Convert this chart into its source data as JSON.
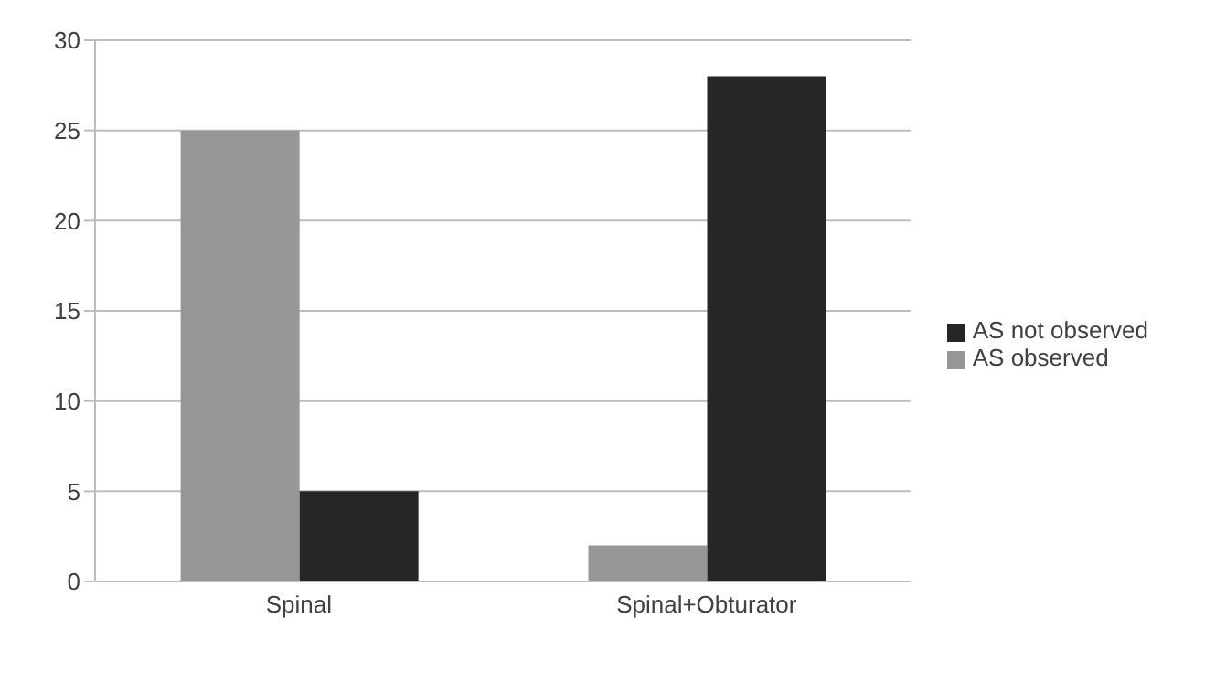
{
  "chart_data": {
    "type": "bar",
    "categories": [
      "Spinal",
      "Spinal+Obturator"
    ],
    "series": [
      {
        "name": "AS observed",
        "color": "#969696",
        "values": [
          25,
          2
        ]
      },
      {
        "name": "AS not observed",
        "color": "#262626",
        "values": [
          5,
          28
        ]
      }
    ],
    "ylim": [
      0,
      30
    ],
    "yticks": [
      0,
      5,
      10,
      15,
      20,
      25,
      30
    ],
    "grid": "y",
    "legend": "right"
  }
}
